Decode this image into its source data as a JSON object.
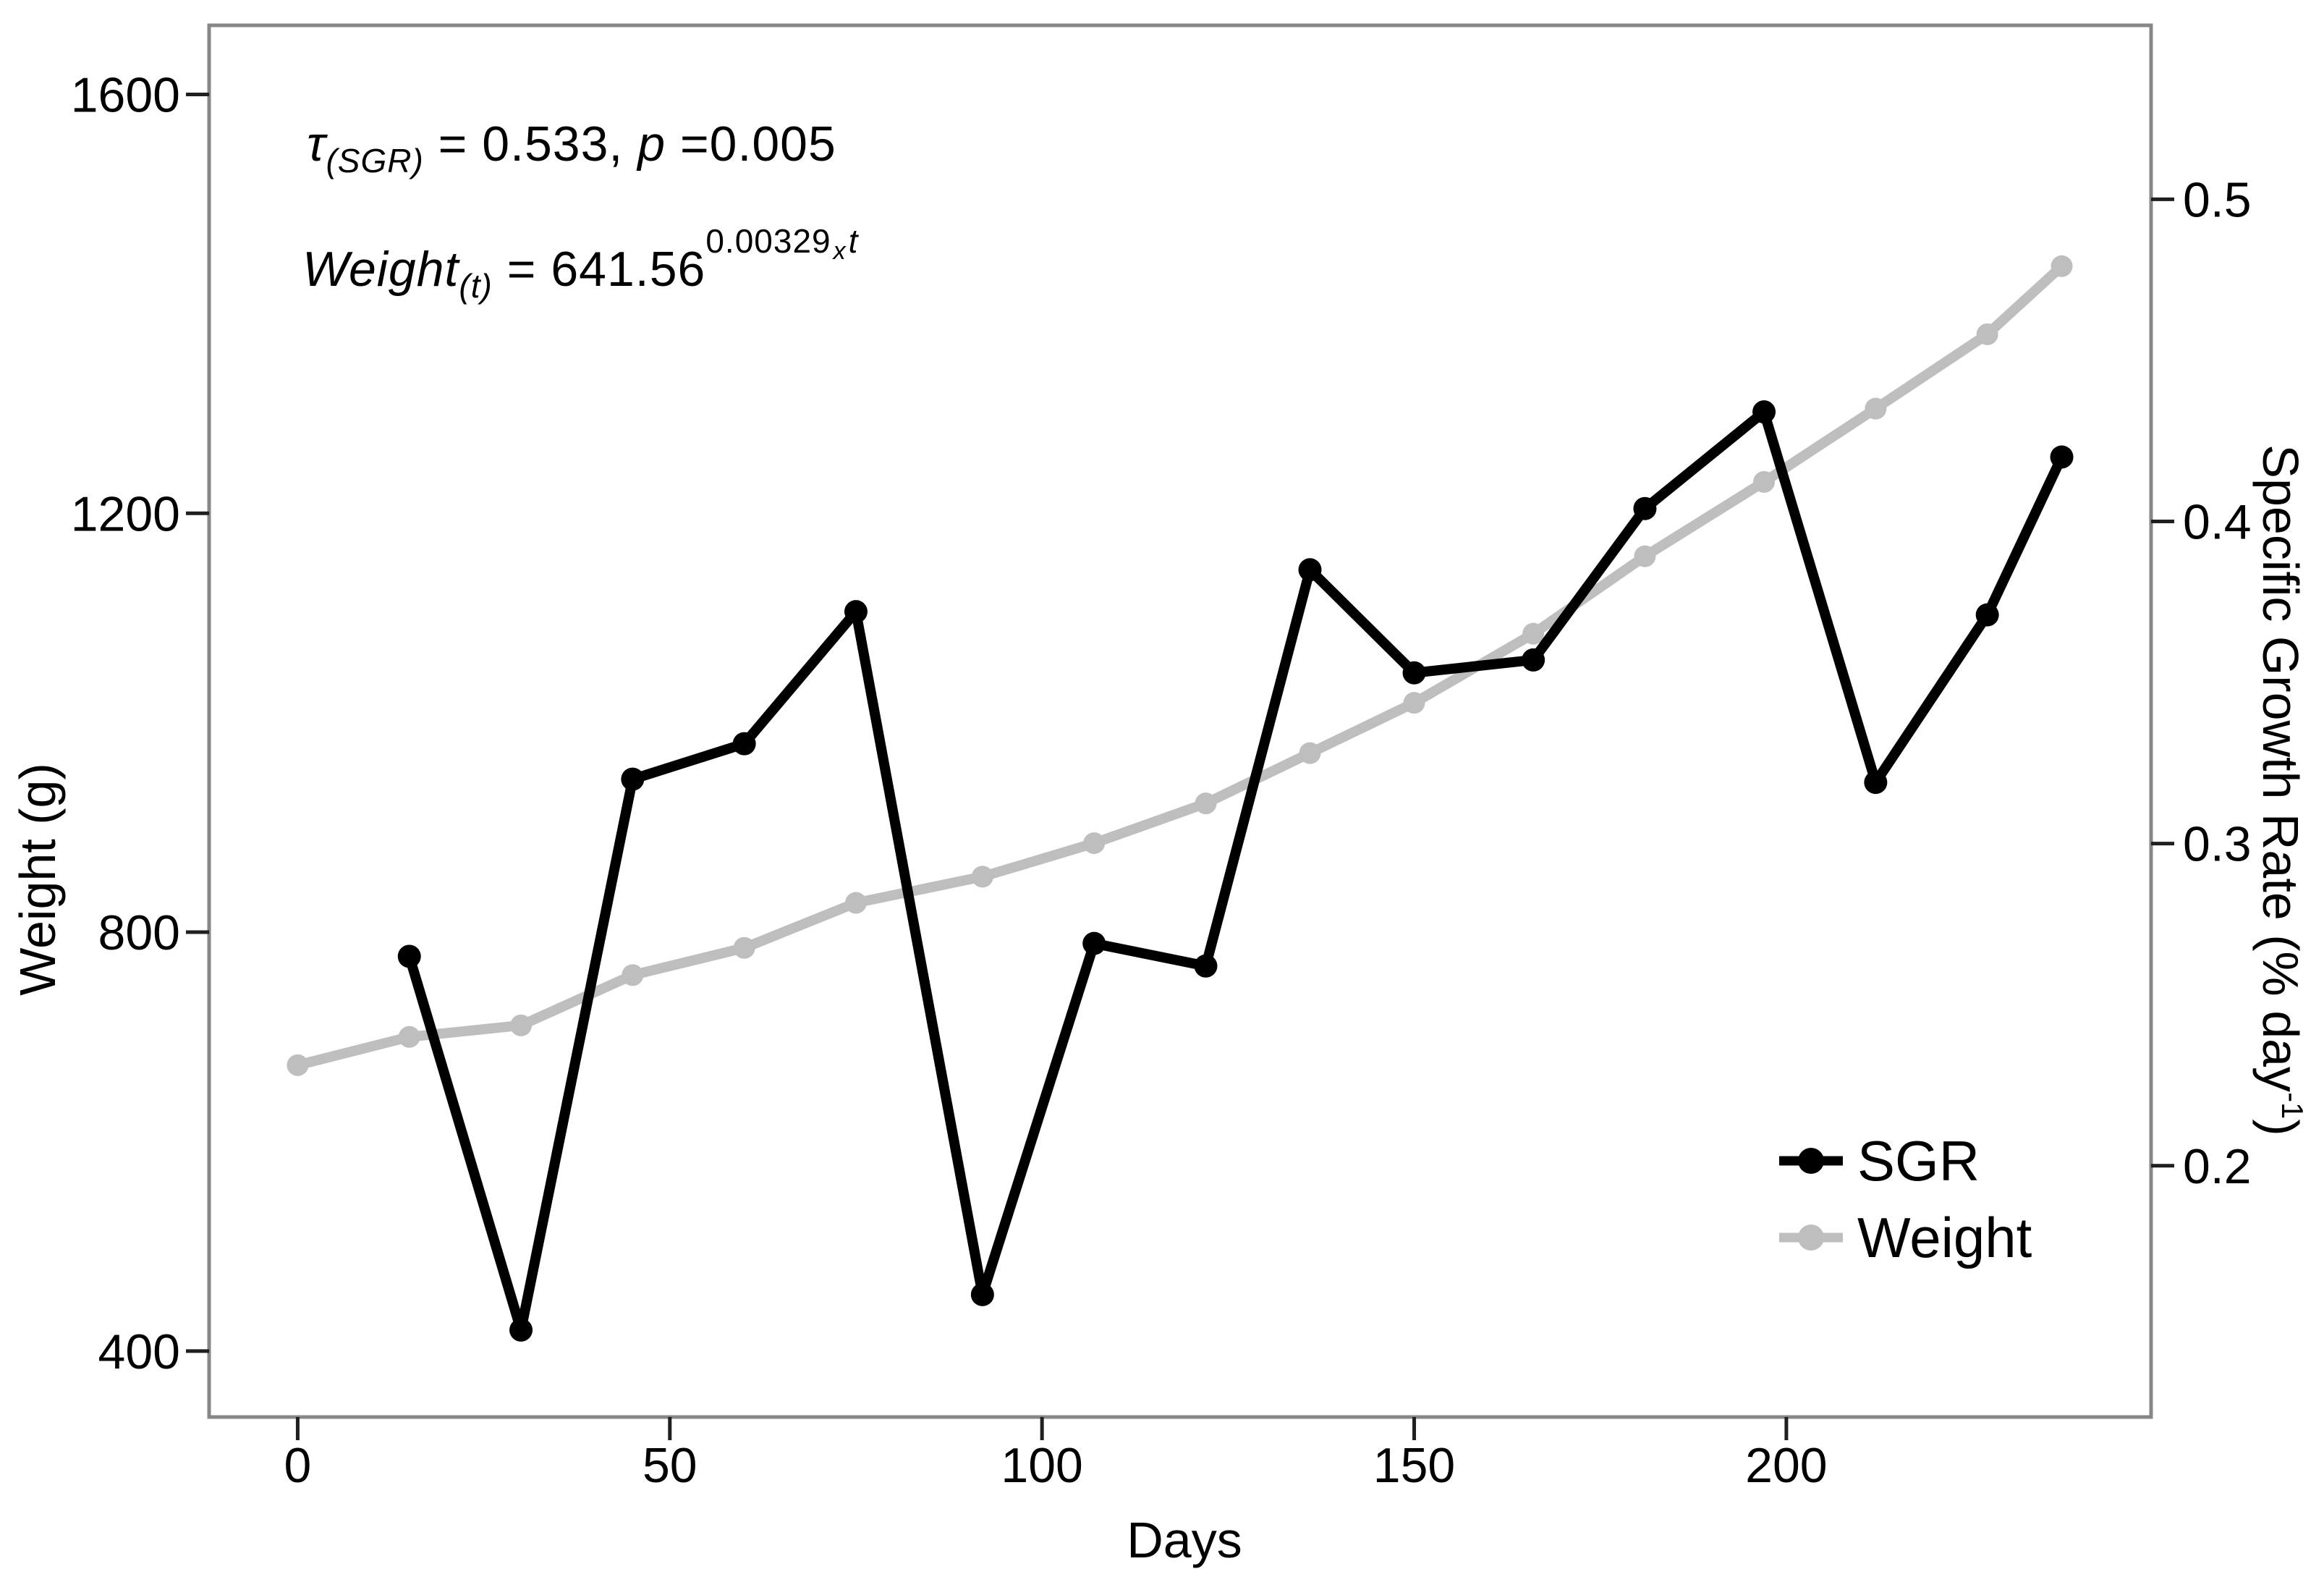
{
  "page": {
    "background": "#ffffff",
    "title": ""
  },
  "chart_data": {
    "type": "line",
    "title": "",
    "xlabel": "Days",
    "ylabel_left": "Weight (g)",
    "ylabel_right": "Specific Growth Rate (% day⁻¹)",
    "ylabel_right_parts": {
      "pre": "Specific Growth Rate (% day",
      "sup": "-1",
      "post": ")"
    },
    "x_ticks": [
      "0",
      "50",
      "100",
      "150",
      "200"
    ],
    "x_tick_values": [
      0,
      50,
      100,
      150,
      200
    ],
    "left_ticks": [
      "400",
      "800",
      "1200",
      "1600"
    ],
    "left_tick_values": [
      400,
      800,
      1200,
      1600
    ],
    "right_ticks": [
      "0.2",
      "0.3",
      "0.4",
      "0.5"
    ],
    "right_tick_values": [
      0.2,
      0.3,
      0.4,
      0.5
    ],
    "xlim": [
      -11.9,
      249
    ],
    "ylim_left": [
      337,
      1666
    ],
    "ylim_right": [
      0.122,
      0.554
    ],
    "grid": false,
    "legend_position": "inside-bottom-right",
    "panel_border_color": "#878787",
    "series": [
      {
        "name": "Weight",
        "axis": "left",
        "color": "#bebebe",
        "x": [
          0,
          15,
          30,
          45,
          60,
          75,
          92,
          107,
          122,
          136,
          150,
          166,
          181,
          197,
          212,
          227,
          237
        ],
        "y": [
          673,
          700,
          711,
          759,
          785,
          828,
          853,
          885,
          923,
          971,
          1019,
          1085,
          1159,
          1230,
          1300,
          1371,
          1436
        ]
      },
      {
        "name": "SGR",
        "axis": "right",
        "color": "#000000",
        "x": [
          15,
          30,
          45,
          60,
          75,
          92,
          107,
          122,
          136,
          150,
          166,
          181,
          197,
          212,
          227,
          237
        ],
        "y": [
          0.265,
          0.149,
          0.32,
          0.331,
          0.372,
          0.16,
          0.269,
          0.262,
          0.385,
          0.353,
          0.357,
          0.404,
          0.434,
          0.319,
          0.371,
          0.42
        ]
      }
    ],
    "annotations": [
      "τ(SGR) = 0.533, p =0.005",
      "Weight(t) = 641.56^(0.00329 x t)"
    ]
  },
  "annotation": {
    "line1": {
      "tau": "τ",
      "sub": "(SGR)",
      "mid": " = 0.533, ",
      "p": "p",
      "tail": " =0.005"
    },
    "line2": {
      "word": "Weight",
      "sub": "(t)",
      "mid": " = 641.56",
      "sup_coef": "0.00329",
      "sup_x": "x",
      "sup_t": "t"
    }
  },
  "legend": {
    "items": [
      {
        "label": "SGR",
        "color": "#000000"
      },
      {
        "label": "Weight",
        "color": "#bebebe"
      }
    ]
  }
}
